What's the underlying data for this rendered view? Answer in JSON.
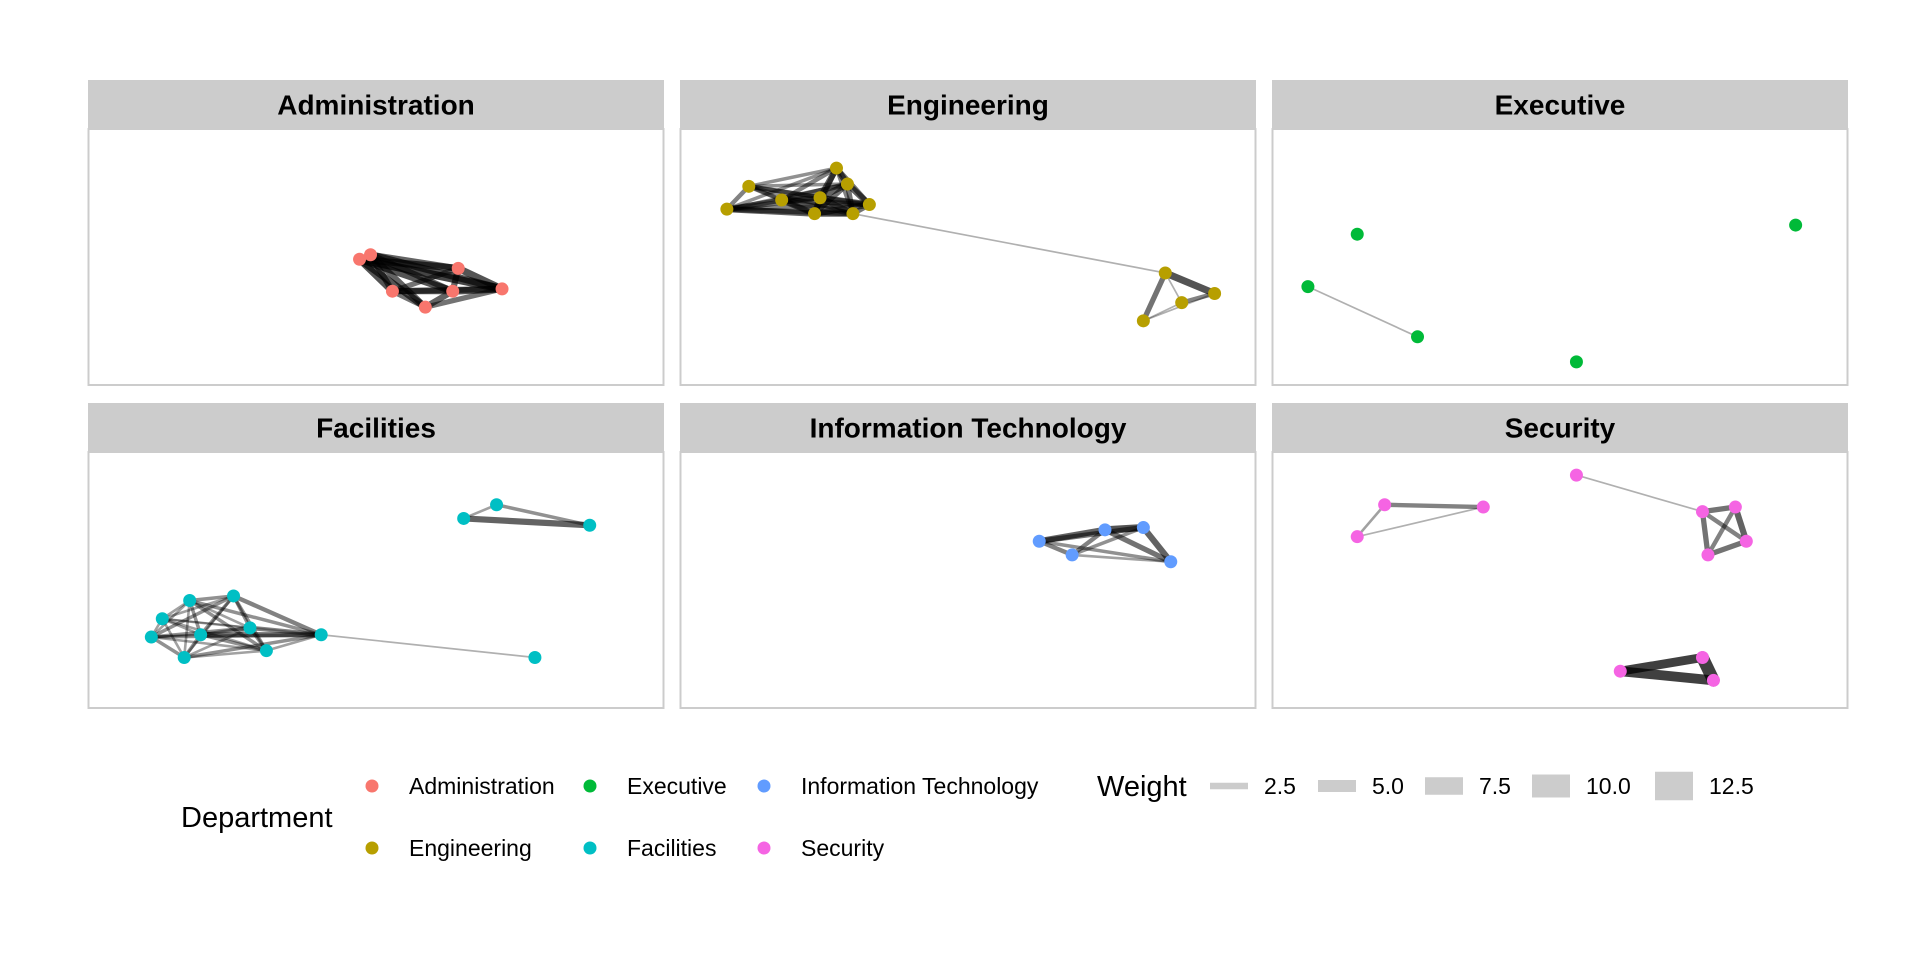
{
  "chart_data": {
    "type": "network",
    "facets": [
      {
        "title": "Administration",
        "nodes": [
          [
            0.47,
            0.51
          ],
          [
            0.49,
            0.49
          ],
          [
            0.65,
            0.55
          ],
          [
            0.53,
            0.65
          ],
          [
            0.64,
            0.65
          ],
          [
            0.73,
            0.64
          ],
          [
            0.59,
            0.72
          ]
        ],
        "edges": [
          [
            0,
            2,
            7
          ],
          [
            0,
            3,
            7
          ],
          [
            0,
            4,
            7
          ],
          [
            0,
            5,
            8
          ],
          [
            0,
            6,
            7
          ],
          [
            1,
            2,
            6
          ],
          [
            1,
            3,
            6
          ],
          [
            1,
            4,
            6
          ],
          [
            1,
            5,
            7
          ],
          [
            1,
            6,
            6
          ],
          [
            2,
            3,
            5
          ],
          [
            2,
            4,
            6
          ],
          [
            2,
            5,
            7
          ],
          [
            3,
            4,
            6
          ],
          [
            3,
            5,
            6
          ],
          [
            4,
            5,
            7
          ],
          [
            4,
            6,
            6
          ],
          [
            5,
            6,
            5
          ],
          [
            3,
            6,
            5
          ]
        ]
      },
      {
        "title": "Engineering",
        "nodes": [
          [
            0.06,
            0.29
          ],
          [
            0.1,
            0.19
          ],
          [
            0.16,
            0.25
          ],
          [
            0.22,
            0.31
          ],
          [
            0.23,
            0.24
          ],
          [
            0.26,
            0.11
          ],
          [
            0.28,
            0.18
          ],
          [
            0.29,
            0.31
          ],
          [
            0.32,
            0.27
          ],
          [
            0.86,
            0.57
          ],
          [
            0.89,
            0.7
          ],
          [
            0.95,
            0.66
          ],
          [
            0.82,
            0.78
          ]
        ],
        "edges": [
          [
            0,
            1,
            4
          ],
          [
            0,
            2,
            5
          ],
          [
            0,
            3,
            6
          ],
          [
            0,
            4,
            5
          ],
          [
            0,
            5,
            3
          ],
          [
            0,
            6,
            3
          ],
          [
            0,
            7,
            5
          ],
          [
            0,
            8,
            4
          ],
          [
            1,
            2,
            3
          ],
          [
            1,
            3,
            4
          ],
          [
            1,
            4,
            4
          ],
          [
            1,
            5,
            3
          ],
          [
            1,
            6,
            3
          ],
          [
            1,
            7,
            3
          ],
          [
            1,
            8,
            4
          ],
          [
            2,
            3,
            6
          ],
          [
            2,
            4,
            5
          ],
          [
            2,
            5,
            4
          ],
          [
            2,
            6,
            5
          ],
          [
            2,
            7,
            5
          ],
          [
            2,
            8,
            5
          ],
          [
            3,
            4,
            6
          ],
          [
            3,
            5,
            5
          ],
          [
            3,
            6,
            5
          ],
          [
            3,
            7,
            6
          ],
          [
            3,
            8,
            6
          ],
          [
            4,
            5,
            6
          ],
          [
            4,
            6,
            6
          ],
          [
            4,
            7,
            6
          ],
          [
            4,
            8,
            6
          ],
          [
            5,
            6,
            6
          ],
          [
            5,
            7,
            4
          ],
          [
            5,
            8,
            5
          ],
          [
            6,
            7,
            5
          ],
          [
            6,
            8,
            6
          ],
          [
            7,
            8,
            5
          ],
          [
            7,
            9,
            1
          ],
          [
            9,
            10,
            1
          ],
          [
            9,
            11,
            7
          ],
          [
            9,
            12,
            5
          ],
          [
            10,
            11,
            4
          ],
          [
            10,
            12,
            1
          ],
          [
            11,
            12,
            1
          ]
        ]
      },
      {
        "title": "Executive",
        "nodes": [
          [
            0.13,
            0.4
          ],
          [
            0.93,
            0.36
          ],
          [
            0.04,
            0.63
          ],
          [
            0.24,
            0.85
          ],
          [
            0.53,
            0.96
          ]
        ],
        "edges": [
          [
            2,
            3,
            1
          ]
        ]
      },
      {
        "title": "Facilities",
        "nodes": [
          [
            0.66,
            0.23
          ],
          [
            0.72,
            0.17
          ],
          [
            0.89,
            0.26
          ],
          [
            0.16,
            0.59
          ],
          [
            0.24,
            0.57
          ],
          [
            0.11,
            0.67
          ],
          [
            0.27,
            0.71
          ],
          [
            0.09,
            0.75
          ],
          [
            0.18,
            0.74
          ],
          [
            0.15,
            0.84
          ],
          [
            0.3,
            0.81
          ],
          [
            0.4,
            0.74
          ],
          [
            0.79,
            0.84
          ]
        ],
        "edges": [
          [
            0,
            1,
            2
          ],
          [
            0,
            2,
            6
          ],
          [
            1,
            2,
            3
          ],
          [
            3,
            4,
            3
          ],
          [
            3,
            5,
            2
          ],
          [
            3,
            6,
            2
          ],
          [
            3,
            7,
            2
          ],
          [
            3,
            8,
            3
          ],
          [
            3,
            9,
            2
          ],
          [
            3,
            10,
            3
          ],
          [
            3,
            11,
            3
          ],
          [
            4,
            5,
            2
          ],
          [
            4,
            6,
            3
          ],
          [
            4,
            7,
            3
          ],
          [
            4,
            8,
            3
          ],
          [
            4,
            9,
            2
          ],
          [
            4,
            10,
            3
          ],
          [
            4,
            11,
            4
          ],
          [
            5,
            6,
            2
          ],
          [
            5,
            7,
            2
          ],
          [
            5,
            8,
            2
          ],
          [
            5,
            9,
            2
          ],
          [
            5,
            10,
            2
          ],
          [
            5,
            11,
            1
          ],
          [
            6,
            7,
            3
          ],
          [
            6,
            8,
            3
          ],
          [
            6,
            9,
            2
          ],
          [
            6,
            10,
            3
          ],
          [
            6,
            11,
            4
          ],
          [
            7,
            8,
            2
          ],
          [
            7,
            9,
            3
          ],
          [
            7,
            10,
            2
          ],
          [
            7,
            11,
            3
          ],
          [
            8,
            9,
            3
          ],
          [
            8,
            10,
            3
          ],
          [
            8,
            11,
            5
          ],
          [
            9,
            10,
            2
          ],
          [
            9,
            11,
            3
          ],
          [
            10,
            11,
            2
          ],
          [
            11,
            12,
            1
          ]
        ]
      },
      {
        "title": "Information Technology",
        "nodes": [
          [
            0.63,
            0.33
          ],
          [
            0.75,
            0.28
          ],
          [
            0.82,
            0.27
          ],
          [
            0.69,
            0.39
          ],
          [
            0.87,
            0.42
          ]
        ],
        "edges": [
          [
            0,
            1,
            6
          ],
          [
            0,
            2,
            5
          ],
          [
            0,
            3,
            4
          ],
          [
            0,
            4,
            3
          ],
          [
            1,
            2,
            7
          ],
          [
            1,
            3,
            4
          ],
          [
            1,
            4,
            5
          ],
          [
            2,
            3,
            3
          ],
          [
            2,
            4,
            6
          ],
          [
            3,
            4,
            2
          ]
        ]
      },
      {
        "title": "Security",
        "nodes": [
          [
            0.53,
            0.04
          ],
          [
            0.76,
            0.2
          ],
          [
            0.82,
            0.18
          ],
          [
            0.84,
            0.33
          ],
          [
            0.77,
            0.39
          ],
          [
            0.18,
            0.17
          ],
          [
            0.36,
            0.18
          ],
          [
            0.13,
            0.31
          ],
          [
            0.61,
            0.9
          ],
          [
            0.76,
            0.84
          ],
          [
            0.78,
            0.94
          ]
        ],
        "edges": [
          [
            0,
            1,
            1
          ],
          [
            1,
            2,
            5
          ],
          [
            1,
            3,
            4
          ],
          [
            1,
            4,
            5
          ],
          [
            2,
            3,
            6
          ],
          [
            2,
            4,
            4
          ],
          [
            3,
            4,
            5
          ],
          [
            5,
            6,
            4
          ],
          [
            5,
            7,
            2
          ],
          [
            6,
            7,
            1
          ],
          [
            8,
            9,
            9
          ],
          [
            8,
            10,
            10
          ],
          [
            9,
            10,
            13
          ]
        ]
      }
    ],
    "legends": [
      {
        "title": "Department",
        "entries": [
          {
            "label": "Administration",
            "color": "#F8766D"
          },
          {
            "label": "Engineering",
            "color": "#B79F00"
          },
          {
            "label": "Executive",
            "color": "#00BA38"
          },
          {
            "label": "Facilities",
            "color": "#00BFC4"
          },
          {
            "label": "Information Technology",
            "color": "#619CFF"
          },
          {
            "label": "Security",
            "color": "#F564E3"
          }
        ]
      },
      {
        "title": "Weight",
        "entries": [
          {
            "label": "2.5",
            "value": 2.5
          },
          {
            "label": "5.0",
            "value": 5.0
          },
          {
            "label": "7.5",
            "value": 7.5
          },
          {
            "label": "10.0",
            "value": 10.0
          },
          {
            "label": "12.5",
            "value": 12.5
          }
        ]
      }
    ],
    "edge_color": "#000000",
    "strip_color": "#CCCCCC",
    "panel_border_color": "#CCCCCC"
  }
}
